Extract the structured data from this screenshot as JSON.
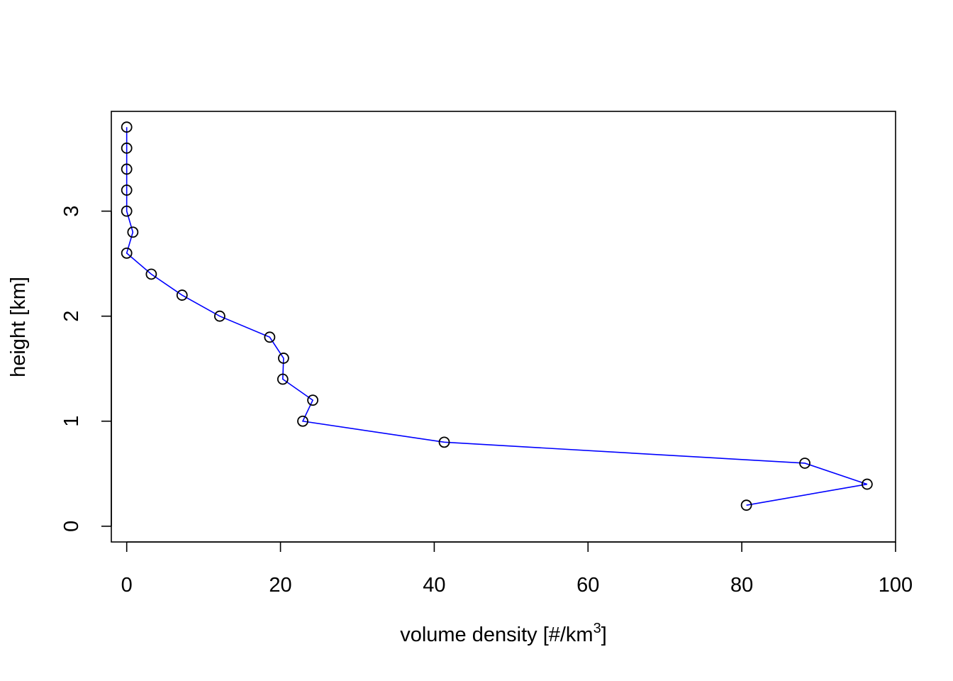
{
  "chart_data": {
    "type": "line",
    "title": "",
    "xlabel": "volume density [#/km",
    "xlabel_superscript": "3",
    "xlabel_suffix": "]",
    "ylabel": "height [km]",
    "xlim": [
      -2,
      100
    ],
    "ylim": [
      -0.15,
      3.95
    ],
    "x_ticks": [
      0,
      20,
      40,
      60,
      80,
      100
    ],
    "y_ticks": [
      0,
      1,
      2,
      3
    ],
    "grid": false,
    "legend": "none",
    "line_color": "#0000ff",
    "point_color": "#000000",
    "series": [
      {
        "x": [
          80.6,
          96.3,
          88.2,
          41.3,
          22.9,
          24.2,
          20.3,
          20.4,
          18.6,
          12.1,
          7.2,
          3.2,
          0.0,
          0.8,
          0.0,
          0.0,
          0.0,
          0.0,
          0.0
        ],
        "y": [
          0.2,
          0.4,
          0.6,
          0.8,
          1.0,
          1.2,
          1.4,
          1.6,
          1.8,
          2.0,
          2.2,
          2.4,
          2.6,
          2.8,
          3.0,
          3.2,
          3.4,
          3.6,
          3.8
        ]
      }
    ]
  }
}
